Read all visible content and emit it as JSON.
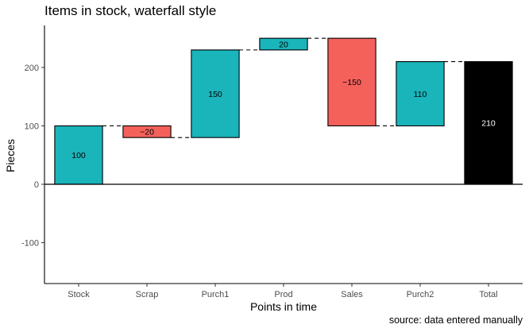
{
  "chart_data": {
    "type": "bar",
    "subtype": "waterfall",
    "title": "Items in stock, waterfall style",
    "caption": "source: data entered manually",
    "xlabel": "Points in time",
    "ylabel": "Pieces",
    "categories": [
      "Stock",
      "Scrap",
      "Purch1",
      "Prod",
      "Sales",
      "Purch2",
      "Total"
    ],
    "steps": [
      {
        "label": "Stock",
        "start": 0,
        "end": 100,
        "value": 100,
        "kind": "increase",
        "value_label": "100"
      },
      {
        "label": "Scrap",
        "start": 100,
        "end": 80,
        "value": -20,
        "kind": "decrease",
        "value_label": "−20"
      },
      {
        "label": "Purch1",
        "start": 80,
        "end": 230,
        "value": 150,
        "kind": "increase",
        "value_label": "150"
      },
      {
        "label": "Prod",
        "start": 230,
        "end": 250,
        "value": 20,
        "kind": "increase",
        "value_label": "20"
      },
      {
        "label": "Sales",
        "start": 250,
        "end": 100,
        "value": -150,
        "kind": "decrease",
        "value_label": "−150"
      },
      {
        "label": "Purch2",
        "start": 100,
        "end": 210,
        "value": 110,
        "kind": "increase",
        "value_label": "110"
      },
      {
        "label": "Total",
        "start": 0,
        "end": 210,
        "value": 210,
        "kind": "total",
        "value_label": "210"
      }
    ],
    "ylim": [
      -170,
      272
    ],
    "yticks": [
      -100,
      0,
      100,
      200
    ],
    "ytick_labels": [
      "-100",
      "0",
      "100",
      "200"
    ],
    "colors": {
      "increase": "#1ab4bb",
      "decrease": "#f4615b",
      "total": "#000000"
    },
    "grid": false,
    "legend": "none"
  }
}
